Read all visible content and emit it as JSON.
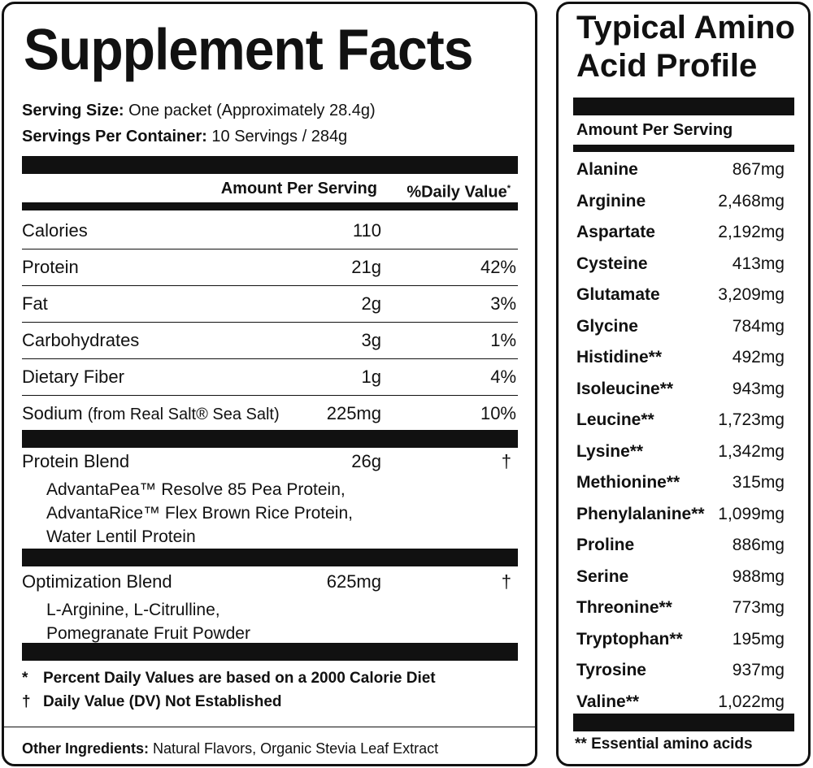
{
  "supplement_facts": {
    "title": "Supplement Facts",
    "serving_size_label": "Serving Size:",
    "serving_size_value": "One packet (Approximately 28.4g)",
    "servings_per_container_label": "Servings Per Container:",
    "servings_per_container_value": "10 Servings / 284g",
    "amount_per_serving_header": "Amount Per Serving",
    "daily_value_header": "%Daily Value",
    "daily_value_header_mark": "*",
    "rows": [
      {
        "name": "Calories",
        "amount": "110",
        "dv": ""
      },
      {
        "name": "Protein",
        "amount": "21g",
        "dv": "42%"
      },
      {
        "name": "Fat",
        "amount": "2g",
        "dv": "3%"
      },
      {
        "name": "Carbohydrates",
        "amount": "3g",
        "dv": "1%"
      },
      {
        "name": "Dietary Fiber",
        "amount": "1g",
        "dv": "4%"
      },
      {
        "name": "Sodium",
        "name_sub": "(from Real Salt® Sea Salt)",
        "amount": "225mg",
        "dv": "10%"
      }
    ],
    "protein_blend": {
      "name": "Protein Blend",
      "amount": "26g",
      "dv": "†",
      "items": [
        "AdvantaPea™ Resolve 85 Pea Protein,",
        "AdvantaRice™ Flex Brown Rice Protein,",
        "Water Lentil Protein"
      ]
    },
    "optimization_blend": {
      "name": "Optimization Blend",
      "amount": "625mg",
      "dv": "†",
      "items": [
        "L-Arginine, L-Citrulline,",
        "Pomegranate Fruit Powder"
      ]
    },
    "footnotes": [
      {
        "mark": "*",
        "text": "Percent Daily Values are based on a 2000 Calorie Diet"
      },
      {
        "mark": "†",
        "text": "Daily Value (DV) Not Established"
      }
    ],
    "other_ingredients_label": "Other Ingredients:",
    "other_ingredients_value": "Natural Flavors, Organic Stevia Leaf Extract"
  },
  "amino_profile": {
    "title_line1": "Typical Amino",
    "title_line2": "Acid Profile",
    "amount_header": "Amount Per Serving",
    "rows": [
      {
        "name": "Alanine",
        "value": "867mg"
      },
      {
        "name": "Arginine",
        "value": "2,468mg"
      },
      {
        "name": "Aspartate",
        "value": "2,192mg"
      },
      {
        "name": "Cysteine",
        "value": "413mg"
      },
      {
        "name": "Glutamate",
        "value": "3,209mg"
      },
      {
        "name": "Glycine",
        "value": "784mg"
      },
      {
        "name": "Histidine**",
        "value": "492mg"
      },
      {
        "name": "Isoleucine**",
        "value": "943mg"
      },
      {
        "name": "Leucine**",
        "value": "1,723mg"
      },
      {
        "name": "Lysine**",
        "value": "1,342mg"
      },
      {
        "name": "Methionine**",
        "value": "315mg"
      },
      {
        "name": "Phenylalanine**",
        "value": "1,099mg"
      },
      {
        "name": "Proline",
        "value": "886mg"
      },
      {
        "name": "Serine",
        "value": "988mg"
      },
      {
        "name": "Threonine**",
        "value": "773mg"
      },
      {
        "name": "Tryptophan**",
        "value": "195mg"
      },
      {
        "name": "Tyrosine",
        "value": "937mg"
      },
      {
        "name": "Valine**",
        "value": "1,022mg"
      }
    ],
    "footnote": "** Essential amino acids"
  }
}
